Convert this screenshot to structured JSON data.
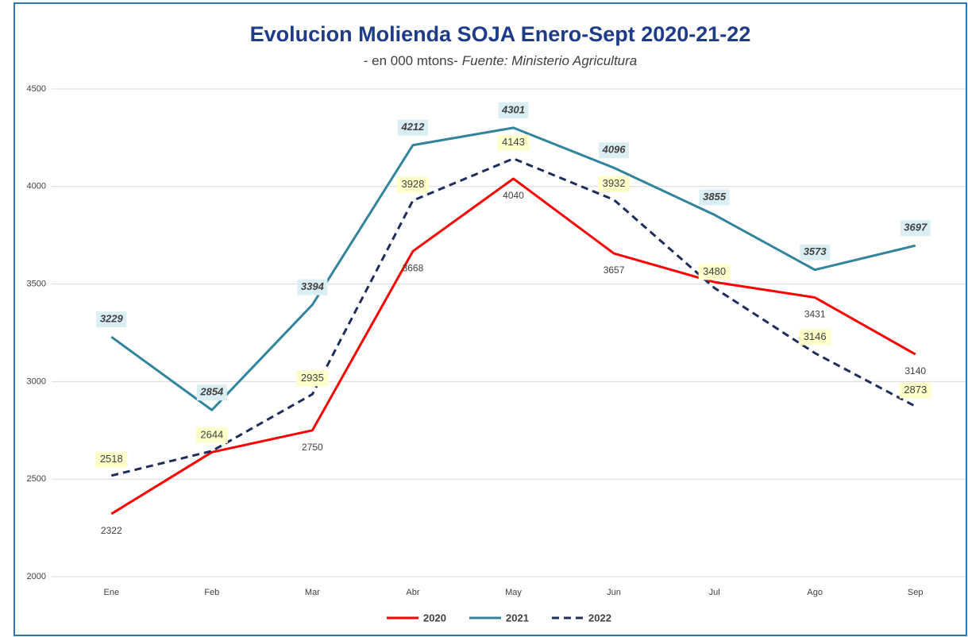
{
  "chart_data": {
    "type": "line",
    "title": "Evolucion Molienda SOJA Enero-Sept 2020-21-22",
    "subtitle": "- en 000 mtons-",
    "source": "Fuente: Ministerio Agricultura",
    "categories": [
      "Ene",
      "Feb",
      "Mar",
      "Abr",
      "May",
      "Jun",
      "Jul",
      "Ago",
      "Sep"
    ],
    "series": [
      {
        "name": "2020",
        "color": "#ff0000",
        "dash": false,
        "values": [
          2322,
          2638,
          2750,
          3668,
          4040,
          3657,
          3510,
          3431,
          3140
        ],
        "value_labels": [
          "2322",
          null,
          "2750",
          "3668",
          "4040",
          "3657",
          null,
          "3431",
          "3140"
        ]
      },
      {
        "name": "2021",
        "color": "#31849b",
        "dash": false,
        "values": [
          3229,
          2854,
          3394,
          4212,
          4301,
          4096,
          3855,
          3573,
          3697
        ],
        "value_labels": [
          "3229",
          "2854",
          "3394",
          "4212",
          "4301",
          "4096",
          "3855",
          "3573",
          "3697"
        ]
      },
      {
        "name": "2022",
        "color": "#1f2d5c",
        "dash": true,
        "values": [
          2518,
          2644,
          2935,
          3928,
          4143,
          3932,
          3480,
          3146,
          2873
        ],
        "value_labels": [
          "2518",
          "2644",
          "2935",
          "3928",
          "4143",
          "3932",
          "3480",
          "3146",
          "2873"
        ]
      }
    ],
    "ylim": [
      2000,
      4500
    ],
    "yticks": [
      2000,
      2500,
      3000,
      3500,
      4000,
      4500
    ],
    "grid": true,
    "legend": "bottom"
  }
}
